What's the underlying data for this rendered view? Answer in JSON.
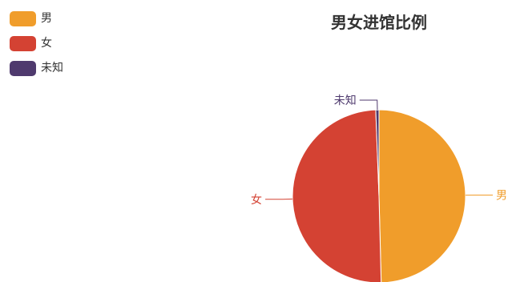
{
  "chart_data": {
    "type": "pie",
    "title": "男女进馆比例",
    "series": [
      {
        "name": "男",
        "value": 49.6,
        "color": "#F09D2B"
      },
      {
        "name": "女",
        "value": 49.8,
        "color": "#D44233"
      },
      {
        "name": "未知",
        "value": 0.6,
        "color": "#4F3A6E"
      }
    ],
    "legend_position": "top-left",
    "labels_outside": true
  }
}
